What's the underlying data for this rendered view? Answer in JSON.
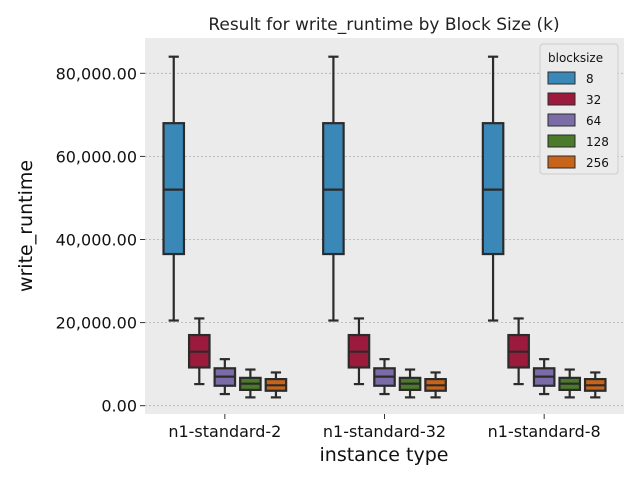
{
  "chart_data": {
    "type": "box",
    "title": "Result for write_runtime by Block Size (k)",
    "xlabel": "instance type",
    "ylabel": "write_runtime",
    "categories": [
      "n1-standard-2",
      "n1-standard-32",
      "n1-standard-8"
    ],
    "y_ticks": [
      0,
      20000,
      40000,
      60000,
      80000
    ],
    "y_tick_labels": [
      "0.00",
      "20,000.00",
      "40,000.00",
      "60,000.00",
      "80,000.00"
    ],
    "ylim": [
      -2000,
      88500
    ],
    "grid": true,
    "legend": {
      "title": "blocksize",
      "placement": "top-right"
    },
    "series": [
      {
        "name": "8",
        "color": "#3a88b8",
        "boxes": [
          {
            "whislo": 20500,
            "q1": 36500,
            "med": 52000,
            "q3": 68000,
            "whishi": 84000
          },
          {
            "whislo": 20500,
            "q1": 36500,
            "med": 52000,
            "q3": 68000,
            "whishi": 84000
          },
          {
            "whislo": 20500,
            "q1": 36500,
            "med": 52000,
            "q3": 68000,
            "whishi": 84000
          }
        ]
      },
      {
        "name": "32",
        "color": "#9c1a3c",
        "boxes": [
          {
            "whislo": 5200,
            "q1": 9200,
            "med": 13000,
            "q3": 17000,
            "whishi": 21000
          },
          {
            "whislo": 5200,
            "q1": 9200,
            "med": 13000,
            "q3": 17000,
            "whishi": 21000
          },
          {
            "whislo": 5200,
            "q1": 9200,
            "med": 13000,
            "q3": 17000,
            "whishi": 21000
          }
        ]
      },
      {
        "name": "64",
        "color": "#7b6ca8",
        "boxes": [
          {
            "whislo": 2800,
            "q1": 4800,
            "med": 7000,
            "q3": 9000,
            "whishi": 11200
          },
          {
            "whislo": 2800,
            "q1": 4800,
            "med": 7000,
            "q3": 9000,
            "whishi": 11200
          },
          {
            "whislo": 2800,
            "q1": 4800,
            "med": 7000,
            "q3": 9000,
            "whishi": 11200
          }
        ]
      },
      {
        "name": "128",
        "color": "#4a7a2a",
        "boxes": [
          {
            "whislo": 2000,
            "q1": 3800,
            "med": 5300,
            "q3": 6700,
            "whishi": 8700
          },
          {
            "whislo": 2000,
            "q1": 3800,
            "med": 5300,
            "q3": 6700,
            "whishi": 8700
          },
          {
            "whislo": 2000,
            "q1": 3800,
            "med": 5300,
            "q3": 6700,
            "whishi": 8700
          }
        ]
      },
      {
        "name": "256",
        "color": "#c8631a",
        "boxes": [
          {
            "whislo": 2000,
            "q1": 3600,
            "med": 4900,
            "q3": 6400,
            "whishi": 8000
          },
          {
            "whislo": 2000,
            "q1": 3600,
            "med": 4900,
            "q3": 6400,
            "whishi": 8000
          },
          {
            "whislo": 2000,
            "q1": 3600,
            "med": 4900,
            "q3": 6400,
            "whishi": 8000
          }
        ]
      }
    ]
  }
}
